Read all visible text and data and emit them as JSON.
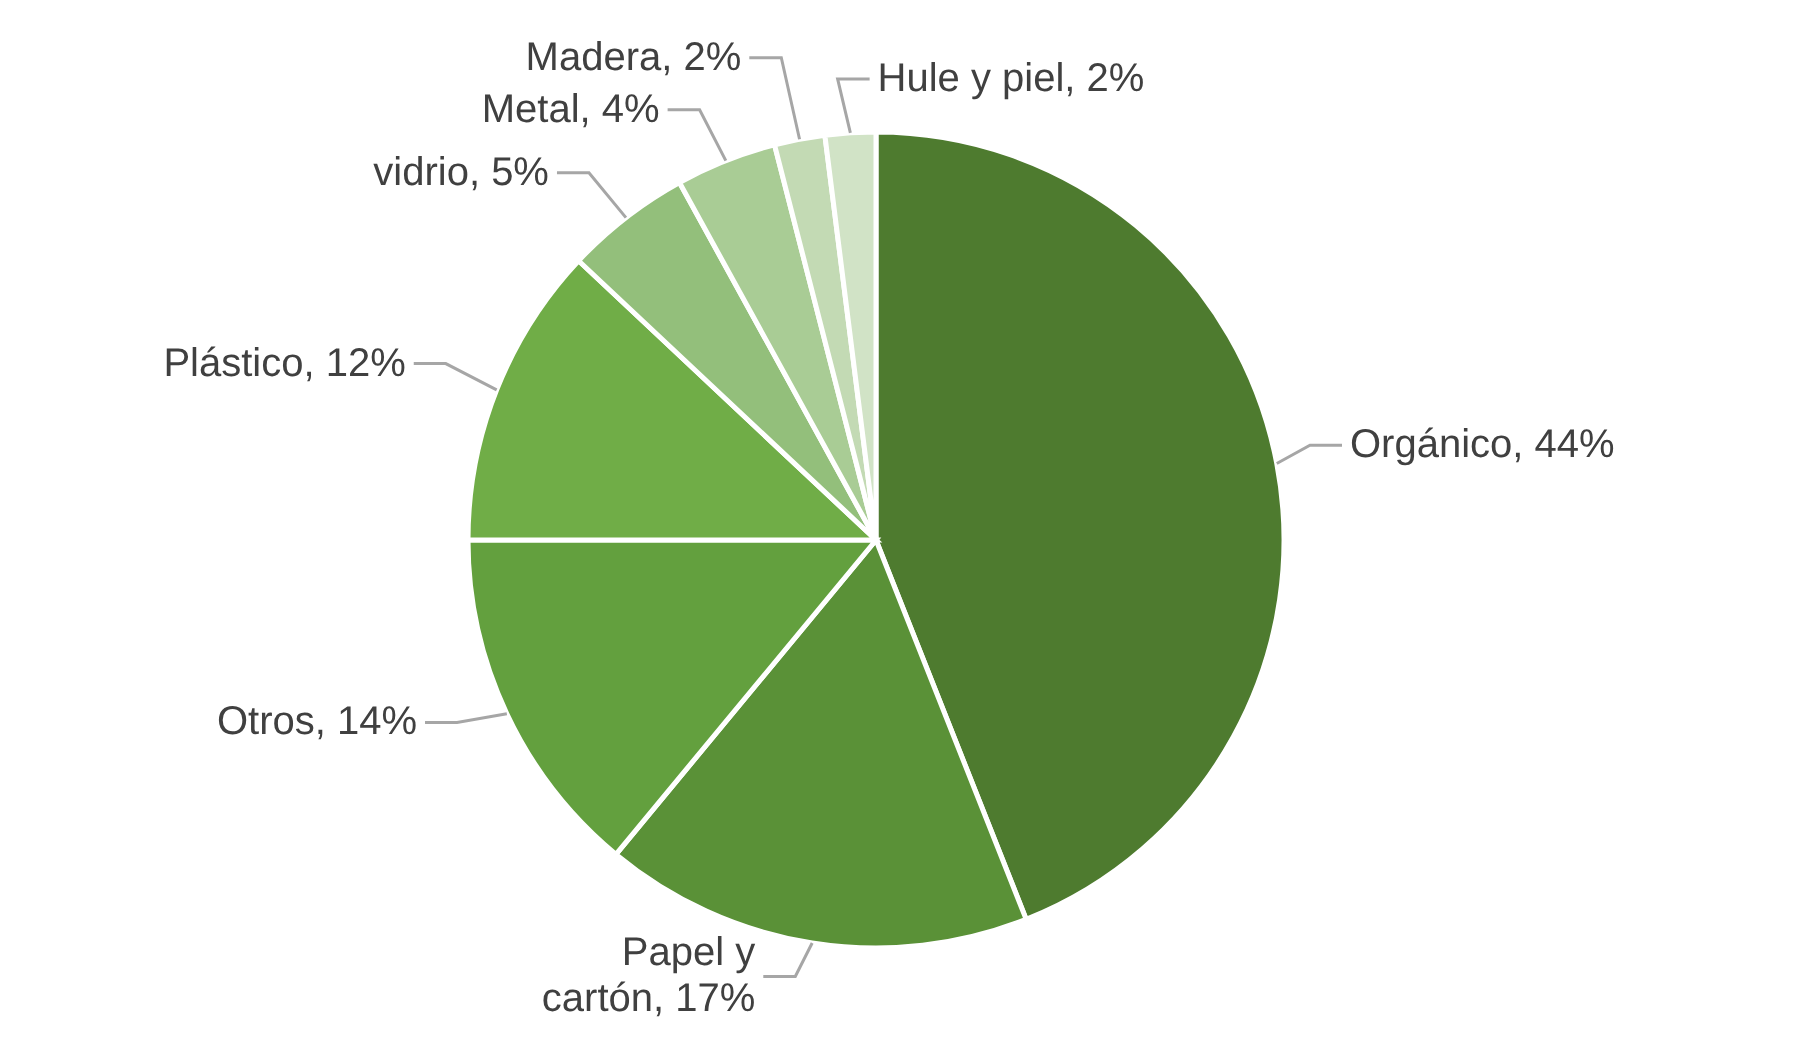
{
  "chart_data": {
    "type": "pie",
    "categories": [
      "Orgánico",
      "Papel y cartón",
      "Otros",
      "Plástico",
      "vidrio",
      "Metal",
      "Madera",
      "Hule y piel"
    ],
    "values": [
      44,
      17,
      14,
      12,
      5,
      4,
      2,
      2
    ],
    "value_labels": [
      "44%",
      "17%",
      "14%",
      "12%",
      "5%",
      "4%",
      "2%",
      "2%"
    ],
    "colors": [
      "#4e7b2f",
      "#5a9137",
      "#63a03e",
      "#70ad47",
      "#93bf7b",
      "#a9cc95",
      "#c3dab4",
      "#d1e3c6"
    ]
  }
}
